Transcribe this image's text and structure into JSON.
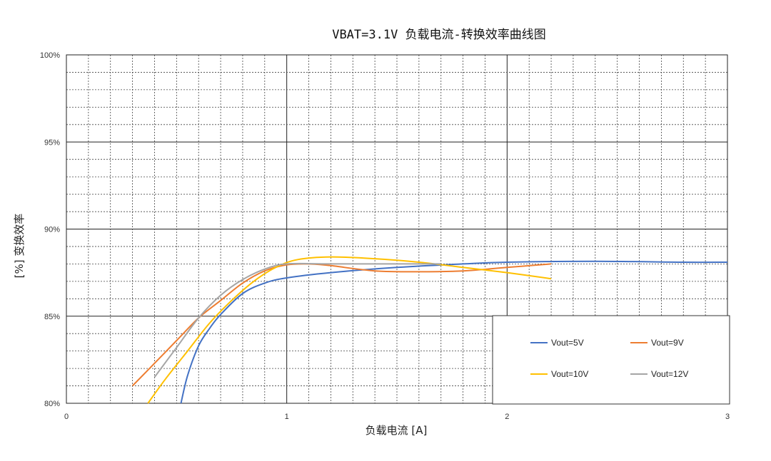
{
  "chart_data": {
    "type": "line",
    "title": "VBAT=3.1V 负载电流-转换效率曲线图",
    "xlabel": "负载电流 [A]",
    "ylabel": "[%] 变换效率",
    "xlim": [
      0,
      3
    ],
    "ylim": [
      80,
      100
    ],
    "x_ticks": [
      "0",
      "1",
      "2",
      "3"
    ],
    "y_ticks": [
      "80%",
      "85%",
      "90%",
      "95%",
      "100%"
    ],
    "grid": true,
    "legend_position": "bottom-right",
    "series": [
      {
        "name": "Vout=5V",
        "color": "#4472C4",
        "x": [
          0.52,
          0.55,
          0.6,
          0.65,
          0.7,
          0.8,
          0.9,
          1.0,
          1.2,
          1.5,
          1.8,
          2.0,
          2.4,
          2.8,
          3.0
        ],
        "y": [
          80.0,
          81.6,
          83.3,
          84.3,
          85.1,
          86.3,
          86.9,
          87.2,
          87.5,
          87.8,
          88.0,
          88.1,
          88.15,
          88.1,
          88.1
        ]
      },
      {
        "name": "Vout=9V",
        "color": "#ED7D31",
        "x": [
          0.3,
          0.4,
          0.5,
          0.6,
          0.7,
          0.8,
          0.9,
          1.0,
          1.1,
          1.2,
          1.4,
          1.6,
          1.8,
          2.0,
          2.2
        ],
        "y": [
          81.0,
          82.3,
          83.6,
          84.9,
          85.9,
          86.9,
          87.6,
          87.95,
          88.0,
          87.9,
          87.6,
          87.55,
          87.6,
          87.8,
          88.0
        ]
      },
      {
        "name": "Vout=10V",
        "color": "#FFC000",
        "x": [
          0.37,
          0.45,
          0.55,
          0.65,
          0.75,
          0.85,
          0.95,
          1.05,
          1.2,
          1.4,
          1.6,
          1.8,
          2.0,
          2.2
        ],
        "y": [
          80.0,
          81.4,
          83.0,
          84.6,
          85.9,
          87.0,
          87.8,
          88.25,
          88.4,
          88.3,
          88.1,
          87.8,
          87.5,
          87.15
        ]
      },
      {
        "name": "Vout=12V",
        "color": "#A5A5A5",
        "x": [
          0.4,
          0.5,
          0.6,
          0.7,
          0.8,
          0.9,
          1.0,
          1.2,
          1.5,
          1.7
        ],
        "y": [
          81.5,
          83.2,
          84.9,
          86.2,
          87.1,
          87.7,
          88.0,
          88.0,
          88.0,
          88.0
        ]
      }
    ]
  }
}
